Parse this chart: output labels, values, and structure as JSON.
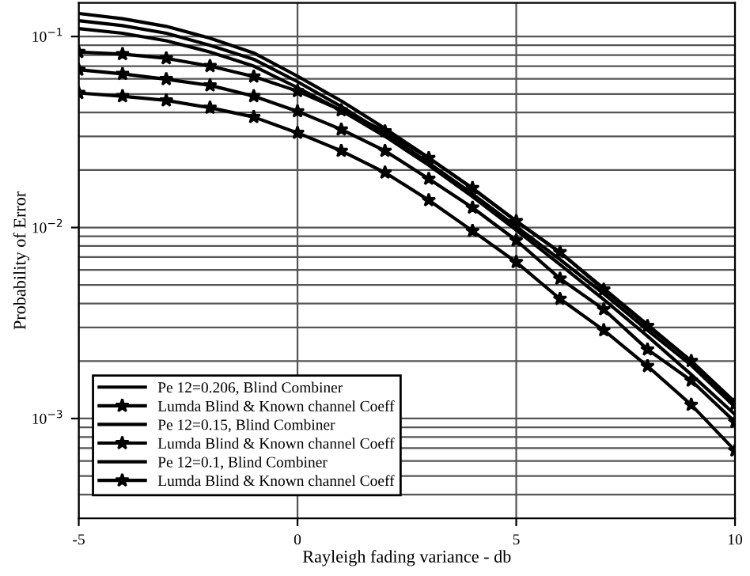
{
  "chart_data": {
    "type": "line",
    "xlabel": "Rayleigh fading variance - db",
    "ylabel": "Probability of Error",
    "x": [
      -5,
      -4,
      -3,
      -2,
      -1,
      0,
      1,
      2,
      3,
      4,
      5,
      6,
      7,
      8,
      9,
      10
    ],
    "series": [
      {
        "name": "Pe 12=0.206, Blind Combiner",
        "color": "#000000",
        "marker": "none",
        "values": [
          0.132,
          0.124,
          0.113,
          0.098,
          0.082,
          0.062,
          0.046,
          0.033,
          0.0232,
          0.016,
          0.0108,
          0.0074,
          0.0048,
          0.0031,
          0.002,
          0.00122
        ]
      },
      {
        "name": "Lumda Blind & Known channel Coeff",
        "color": "#000000",
        "marker": "star",
        "values": [
          0.0829,
          0.0809,
          0.0769,
          0.07,
          0.0617,
          0.0518,
          0.0411,
          0.0319,
          0.0231,
          0.0161,
          0.0108,
          0.00743,
          0.00473,
          0.00305,
          0.002,
          0.00119
        ]
      },
      {
        "name": "Pe 12=0.15, Blind Combiner",
        "color": "#000000",
        "marker": "none",
        "values": [
          0.121,
          0.114,
          0.104,
          0.09,
          0.076,
          0.058,
          0.043,
          0.031,
          0.0218,
          0.015,
          0.0101,
          0.0068,
          0.0045,
          0.0029,
          0.0019,
          0.00115
        ]
      },
      {
        "name": "Lumda Blind & Known channel Coeff",
        "color": "#000000",
        "marker": "star",
        "values": [
          0.067,
          0.0637,
          0.0598,
          0.0555,
          0.0487,
          0.0406,
          0.0326,
          0.0252,
          0.018,
          0.0127,
          0.00857,
          0.0054,
          0.00373,
          0.0023,
          0.00158,
          0.00096
        ]
      },
      {
        "name": "Pe 12=0.1, Blind Combiner",
        "color": "#000000",
        "marker": "none",
        "values": [
          0.11,
          0.104,
          0.095,
          0.083,
          0.07,
          0.054,
          0.041,
          0.03,
          0.0212,
          0.0145,
          0.0097,
          0.0064,
          0.0042,
          0.0027,
          0.0017,
          0.00105
        ]
      },
      {
        "name": "Lumda Blind & Known channel Coeff",
        "color": "#000000",
        "marker": "star",
        "values": [
          0.0506,
          0.0487,
          0.0463,
          0.0424,
          0.0379,
          0.0313,
          0.0252,
          0.0194,
          0.0139,
          0.0096,
          0.00659,
          0.00423,
          0.0029,
          0.00188,
          0.00118,
          0.00068
        ]
      }
    ],
    "log": "y",
    "xlim": [
      -5,
      10
    ],
    "xticks": [
      -5,
      0,
      5,
      10
    ],
    "ylim": [
      0.0003,
      0.15
    ],
    "yticks": [
      {
        "value": 0.001,
        "label": "10$^{−3}$"
      },
      {
        "value": 0.01,
        "label": "10$^{−2}$"
      },
      {
        "value": 0.1,
        "label": "10$^{−1}$"
      }
    ],
    "grid": true,
    "legend": "bottom left",
    "line_style": "solid"
  }
}
